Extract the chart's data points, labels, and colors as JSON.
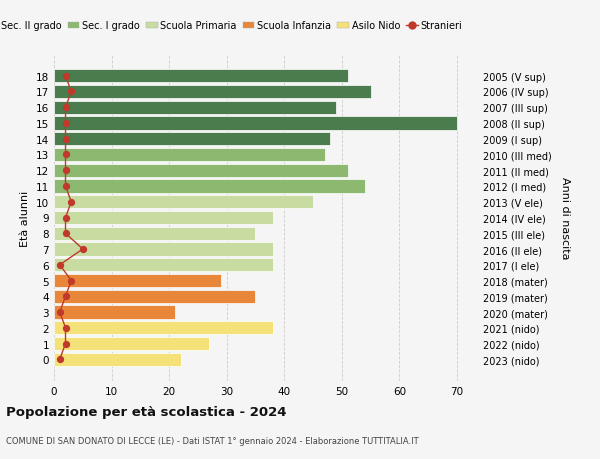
{
  "ages": [
    0,
    1,
    2,
    3,
    4,
    5,
    6,
    7,
    8,
    9,
    10,
    11,
    12,
    13,
    14,
    15,
    16,
    17,
    18
  ],
  "years": [
    "2023 (nido)",
    "2022 (nido)",
    "2021 (nido)",
    "2020 (mater)",
    "2019 (mater)",
    "2018 (mater)",
    "2017 (I ele)",
    "2016 (II ele)",
    "2015 (III ele)",
    "2014 (IV ele)",
    "2013 (V ele)",
    "2012 (I med)",
    "2011 (II med)",
    "2010 (III med)",
    "2009 (I sup)",
    "2008 (II sup)",
    "2007 (III sup)",
    "2006 (IV sup)",
    "2005 (V sup)"
  ],
  "bar_values": [
    22,
    27,
    38,
    21,
    35,
    29,
    38,
    38,
    35,
    38,
    45,
    54,
    51,
    47,
    48,
    70,
    49,
    55,
    51
  ],
  "bar_colors": [
    "#f5e17a",
    "#f5e17a",
    "#f5e17a",
    "#e8873a",
    "#e8873a",
    "#e8873a",
    "#c8dba0",
    "#c8dba0",
    "#c8dba0",
    "#c8dba0",
    "#c8dba0",
    "#8db870",
    "#8db870",
    "#8db870",
    "#4a7c4e",
    "#4a7c4e",
    "#4a7c4e",
    "#4a7c4e",
    "#4a7c4e"
  ],
  "stranieri_values": [
    1,
    2,
    2,
    1,
    2,
    3,
    1,
    5,
    2,
    2,
    3,
    2,
    2,
    2,
    2,
    2,
    2,
    3,
    2
  ],
  "stranieri_color": "#c0392b",
  "legend_labels": [
    "Sec. II grado",
    "Sec. I grado",
    "Scuola Primaria",
    "Scuola Infanzia",
    "Asilo Nido",
    "Stranieri"
  ],
  "legend_colors": [
    "#4a7c4e",
    "#8db870",
    "#c8dba0",
    "#e8873a",
    "#f5e17a",
    "#c0392b"
  ],
  "left_ylabel": "Età alunni",
  "right_ylabel": "Anni di nascita",
  "title": "Popolazione per età scolastica - 2024",
  "subtitle": "COMUNE DI SAN DONATO DI LECCE (LE) - Dati ISTAT 1° gennaio 2024 - Elaborazione TUTTITALIA.IT",
  "xlim": [
    0,
    74
  ],
  "xticks": [
    0,
    10,
    20,
    30,
    40,
    50,
    60,
    70
  ],
  "bg_color": "#f5f5f5",
  "grid_color": "#cccccc"
}
